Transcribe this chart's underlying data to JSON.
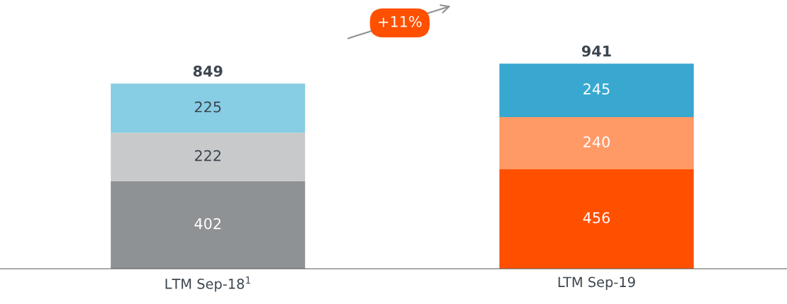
{
  "chart_data": {
    "type": "bar",
    "stacked": true,
    "data_labels": true,
    "grid": false,
    "categories": [
      "LTM Sep-18$^{1}$",
      "LTM Sep-19"
    ],
    "series": [
      {
        "colors": [
          "#8f9294",
          "#ff5000"
        ],
        "values": [
          402,
          456
        ]
      },
      {
        "colors": [
          "#c8c9ca",
          "#ff9966"
        ],
        "values": [
          222,
          240
        ]
      },
      {
        "colors": [
          "#87cde3",
          "#38a8d1"
        ],
        "values": [
          225,
          245
        ]
      }
    ],
    "totals": [
      "849",
      "941"
    ],
    "annotations": [
      "+11%"
    ]
  }
}
